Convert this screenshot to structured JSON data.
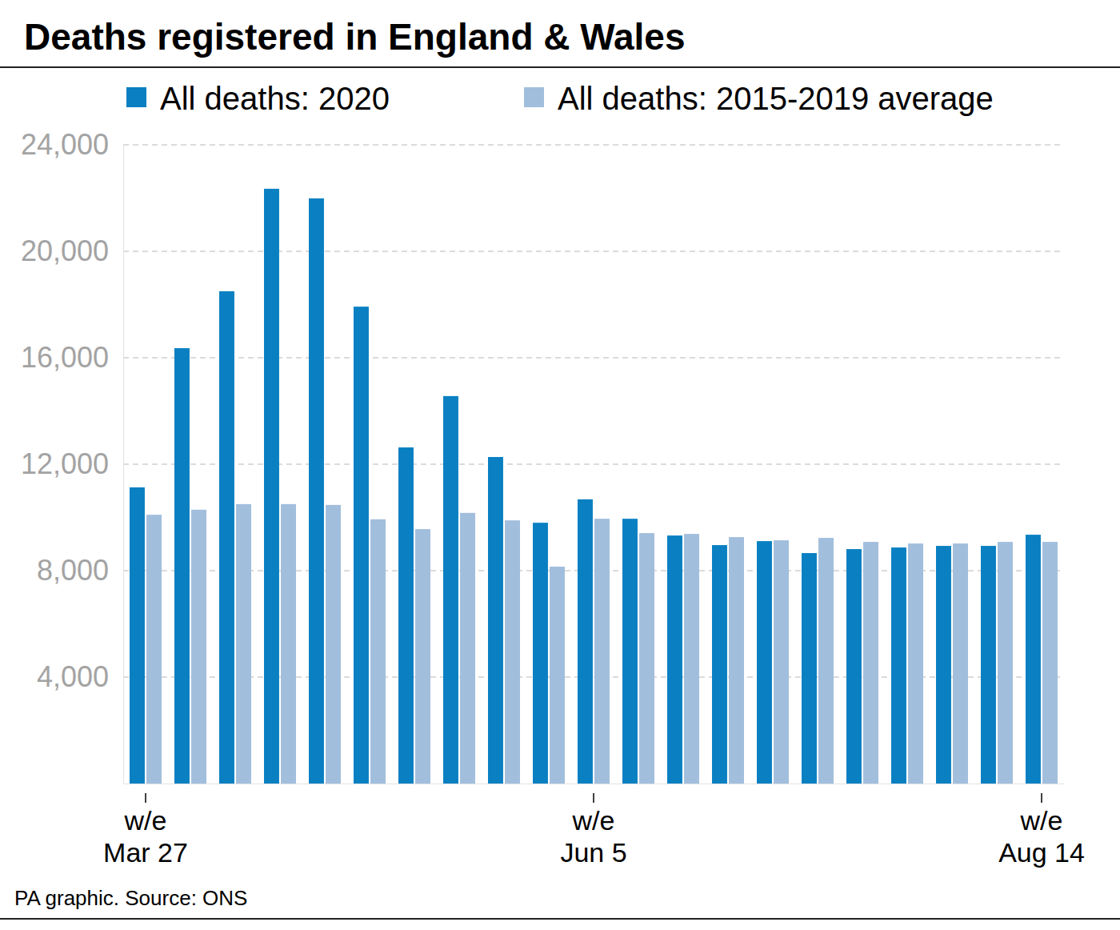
{
  "chart_data": {
    "type": "bar",
    "title": "Deaths registered in England & Wales",
    "source": "PA graphic. Source: ONS",
    "categories": [
      "w/e\nMar 27",
      null,
      null,
      null,
      null,
      null,
      null,
      null,
      null,
      null,
      "w/e\nJun 5",
      null,
      null,
      null,
      null,
      null,
      null,
      null,
      null,
      null,
      "w/e\nAug 14"
    ],
    "series": [
      {
        "name": "All deaths: 2020",
        "color": "#0a80c2",
        "values": [
          11130,
          16360,
          18500,
          22350,
          21990,
          17920,
          12630,
          14560,
          12270,
          9800,
          10680,
          9950,
          9320,
          8960,
          9110,
          8660,
          8810,
          8870,
          8930,
          8930,
          9350
        ]
      },
      {
        "name": "All deaths: 2015-2019 average",
        "color": "#a2bedd",
        "values": [
          10100,
          10290,
          10500,
          10500,
          10470,
          9930,
          9560,
          10170,
          9890,
          8150,
          9950,
          9410,
          9380,
          9260,
          9140,
          9230,
          9080,
          9020,
          9020,
          9080,
          9080
        ]
      }
    ],
    "ylim": [
      0,
      24000
    ],
    "yticks": [
      {
        "value": 4000,
        "label": "4,000"
      },
      {
        "value": 8000,
        "label": "8,000"
      },
      {
        "value": 12000,
        "label": "12,000"
      },
      {
        "value": 16000,
        "label": "16,000"
      },
      {
        "value": 20000,
        "label": "20,000"
      },
      {
        "value": 24000,
        "label": "24,000"
      }
    ],
    "grid": true,
    "legend": "top"
  }
}
